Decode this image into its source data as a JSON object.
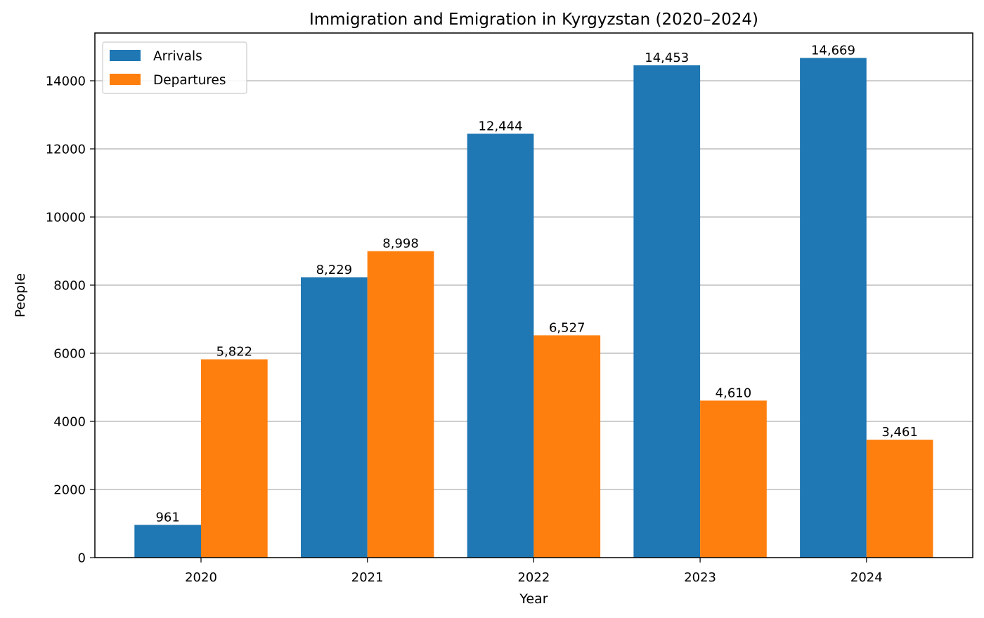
{
  "chart_data": {
    "type": "bar",
    "title": "Immigration and Emigration in Kyrgyzstan (2020–2024)",
    "xlabel": "Year",
    "ylabel": "People",
    "categories": [
      "2020",
      "2021",
      "2022",
      "2023",
      "2024"
    ],
    "series": [
      {
        "name": "Arrivals",
        "color": "#1f77b4",
        "values": [
          961,
          8229,
          12444,
          14453,
          14669
        ],
        "labels": [
          "961",
          "8,229",
          "12,444",
          "14,453",
          "14,669"
        ]
      },
      {
        "name": "Departures",
        "color": "#ff7f0e",
        "values": [
          5822,
          8998,
          6527,
          4610,
          3461
        ],
        "labels": [
          "5,822",
          "8,998",
          "6,527",
          "4,610",
          "3,461"
        ]
      }
    ],
    "yticks": [
      0,
      2000,
      4000,
      6000,
      8000,
      10000,
      12000,
      14000
    ],
    "ytick_labels": [
      "0",
      "2000",
      "4000",
      "6000",
      "8000",
      "10000",
      "12000",
      "14000"
    ],
    "ylim": [
      0,
      15402
    ],
    "grid": "y",
    "legend_position": "top-left"
  }
}
